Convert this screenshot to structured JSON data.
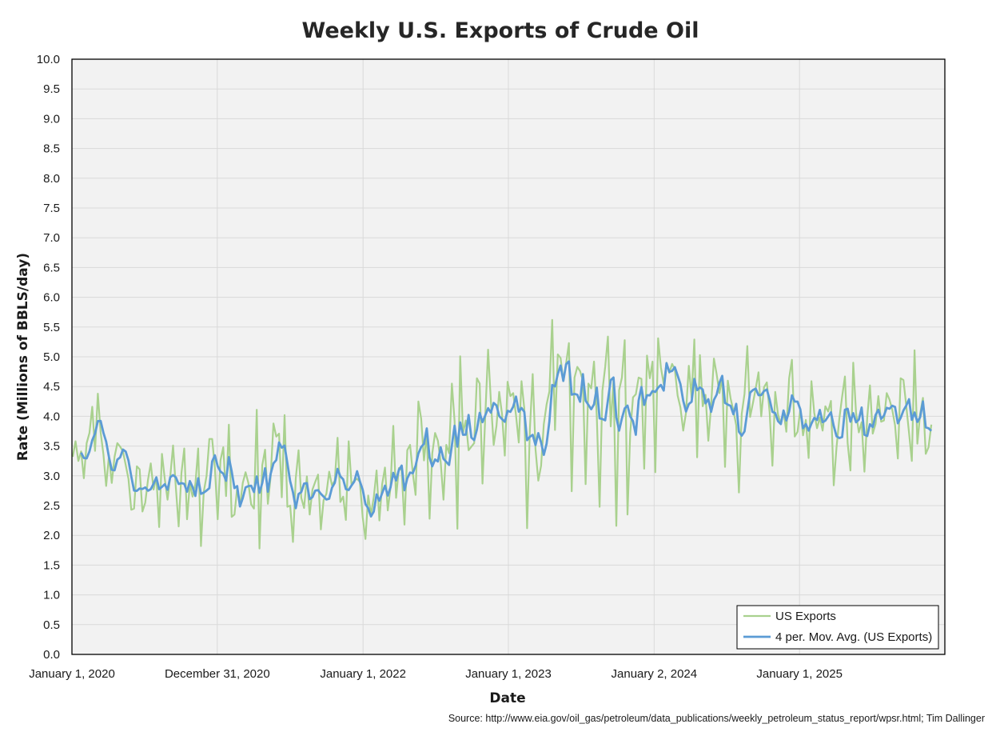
{
  "chart_data": {
    "type": "line",
    "title": "Weekly U.S. Exports of Crude Oil",
    "xlabel": "Date",
    "ylabel": "Rate (Millions of BBLS/day)",
    "source": "Source: http://www.eia.gov/oil_gas/petroleum/data_publications/weekly_petroleum_status_report/wpsr.html; Tim Dallinger",
    "ylim": [
      0,
      10
    ],
    "y_ticks": [
      "0.0",
      "0.5",
      "1.0",
      "1.5",
      "2.0",
      "2.5",
      "3.0",
      "3.5",
      "4.0",
      "4.5",
      "5.0",
      "5.5",
      "6.0",
      "6.5",
      "7.0",
      "7.5",
      "8.0",
      "8.5",
      "9.0",
      "9.5",
      "10.0"
    ],
    "x_tick_labels": [
      "January 1, 2020",
      "December 31, 2020",
      "January 1, 2022",
      "January 1, 2023",
      "January 2, 2024",
      "January 1, 2025"
    ],
    "x_start": "January 1, 2020",
    "x_end": "January 1, 2026",
    "grid": true,
    "legend_position": "bottom-right",
    "colors": {
      "exports": "#a9d18e",
      "moving_avg": "#5b9bd5",
      "plot_bg": "#f2f2f2",
      "grid": "#d9d9d9"
    },
    "series": [
      {
        "name": "US Exports",
        "start_week": "January 3, 2020",
        "interval_days": 7,
        "values": [
          3.32,
          3.58,
          3.25,
          3.41,
          2.96,
          3.55,
          3.72,
          4.16,
          3.42,
          4.38,
          3.73,
          3.36,
          2.83,
          3.34,
          2.88,
          3.32,
          3.55,
          3.49,
          3.41,
          3.18,
          2.95,
          2.43,
          2.45,
          3.16,
          3.11,
          2.4,
          2.55,
          2.94,
          3.21,
          2.77,
          2.98,
          2.14,
          3.37,
          2.95,
          2.6,
          2.99,
          3.51,
          2.8,
          2.15,
          3.05,
          3.46,
          2.27,
          2.87,
          2.65,
          2.86,
          3.46,
          1.82,
          2.73,
          3.0,
          3.62,
          3.62,
          3.14,
          2.27,
          3.26,
          3.48,
          2.66,
          3.86,
          2.31,
          2.35,
          2.79,
          2.49,
          2.88,
          3.06,
          2.88,
          2.52,
          2.45,
          4.11,
          1.78,
          3.18,
          3.44,
          2.53,
          2.99,
          3.88,
          3.66,
          3.71,
          2.64,
          4.02,
          2.48,
          2.5,
          1.89,
          2.96,
          3.43,
          2.63,
          2.46,
          2.99,
          2.35,
          2.77,
          2.9,
          3.02,
          2.1,
          2.59,
          2.7,
          3.07,
          2.84,
          2.92,
          3.64,
          2.56,
          2.65,
          2.26,
          3.58,
          2.86,
          2.92,
          2.95,
          2.9,
          2.31,
          1.94,
          2.67,
          2.35,
          2.64,
          3.09,
          2.25,
          2.86,
          3.14,
          2.42,
          2.8,
          3.84,
          2.63,
          3.13,
          3.09,
          2.18,
          3.43,
          3.52,
          3.05,
          2.68,
          4.25,
          3.96,
          3.26,
          3.72,
          2.28,
          3.38,
          3.72,
          3.59,
          3.23,
          2.6,
          3.52,
          3.38,
          4.55,
          3.92,
          2.11,
          5.01,
          3.72,
          3.93,
          3.43,
          3.49,
          3.55,
          4.64,
          4.55,
          2.87,
          4.01,
          5.12,
          4.25,
          3.52,
          3.84,
          4.41,
          4.04,
          3.34,
          4.58,
          4.34,
          4.39,
          4.02,
          3.56,
          4.59,
          4.13,
          2.12,
          3.79,
          4.71,
          3.45,
          2.92,
          3.17,
          3.87,
          4.2,
          4.42,
          5.62,
          3.77,
          5.04,
          4.98,
          4.59,
          4.89,
          5.23,
          2.74,
          4.65,
          4.83,
          4.76,
          4.6,
          2.86,
          4.55,
          4.47,
          4.92,
          3.99,
          2.48,
          4.43,
          4.83,
          5.34,
          3.83,
          4.61,
          2.16,
          4.44,
          4.65,
          5.28,
          2.35,
          3.72,
          4.32,
          4.37,
          4.65,
          4.63,
          3.12,
          5.02,
          4.64,
          4.92,
          3.06,
          5.31,
          4.82,
          4.54,
          4.9,
          4.73,
          4.88,
          4.79,
          4.35,
          4.15,
          3.76,
          4.06,
          4.85,
          4.31,
          5.29,
          3.31,
          5.03,
          4.17,
          4.36,
          3.59,
          4.18,
          4.97,
          4.71,
          4.39,
          4.65,
          3.15,
          4.6,
          4.3,
          4.09,
          3.85,
          2.72,
          4.04,
          4.38,
          5.18,
          3.99,
          4.22,
          4.47,
          4.74,
          4.0,
          4.49,
          4.57,
          4.07,
          3.17,
          4.41,
          4.03,
          3.87,
          4.08,
          3.74,
          4.64,
          4.95,
          3.66,
          3.74,
          4.12,
          3.68,
          3.94,
          3.3,
          4.59,
          4.06,
          3.8,
          3.98,
          3.76,
          4.17,
          4.08,
          4.26,
          2.84,
          3.48,
          3.96,
          4.33,
          4.67,
          3.55,
          3.09,
          4.9,
          4.06,
          3.73,
          3.9,
          3.07,
          3.98,
          4.52,
          3.71,
          3.87,
          4.34,
          3.91,
          3.93,
          4.39,
          4.28,
          4.11,
          3.85,
          3.29,
          4.64,
          4.61,
          4.18,
          3.72,
          3.25,
          5.11,
          3.54,
          4.04,
          4.31,
          3.37,
          3.48,
          3.86
        ]
      },
      {
        "name": "4 per. Mov. Avg. (US Exports)",
        "period": 4
      }
    ]
  }
}
